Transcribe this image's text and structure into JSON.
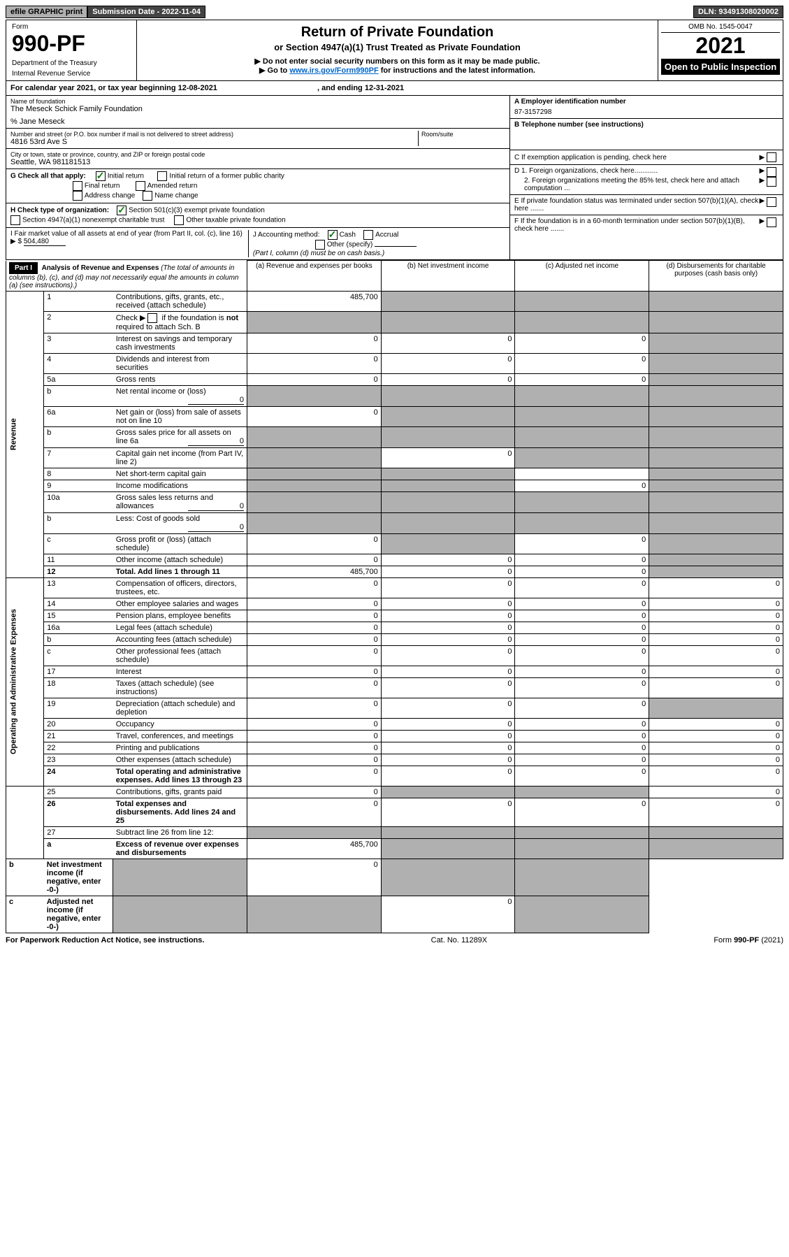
{
  "topbar": {
    "efile": "efile GRAPHIC print",
    "submission": "Submission Date - 2022-11-04",
    "dln": "DLN: 93491308020002"
  },
  "header": {
    "form_label": "Form",
    "form_number": "990-PF",
    "dept1": "Department of the Treasury",
    "dept2": "Internal Revenue Service",
    "title1": "Return of Private Foundation",
    "title2": "or Section 4947(a)(1) Trust Treated as Private Foundation",
    "sub1": "▶ Do not enter social security numbers on this form as it may be made public.",
    "sub2_pre": "▶ Go to ",
    "sub2_link": "www.irs.gov/Form990PF",
    "sub2_post": " for instructions and the latest information.",
    "omb": "OMB No. 1545-0047",
    "year": "2021",
    "open": "Open to Public Inspection"
  },
  "cal_year": {
    "text_pre": "For calendar year 2021, or tax year beginning ",
    "begin": "12-08-2021",
    "text_mid": " , and ending ",
    "end": "12-31-2021"
  },
  "info": {
    "name_label": "Name of foundation",
    "name": "The Meseck Schick Family Foundation",
    "care_of": "% Jane Meseck",
    "street_label": "Number and street (or P.O. box number if mail is not delivered to street address)",
    "street": "4816 53rd Ave S",
    "room_label": "Room/suite",
    "city_label": "City or town, state or province, country, and ZIP or foreign postal code",
    "city": "Seattle, WA  981181513",
    "ein_label": "A Employer identification number",
    "ein": "87-3157298",
    "phone_label": "B Telephone number (see instructions)",
    "c_label": "C If exemption application is pending, check here",
    "d1_label": "D 1. Foreign organizations, check here............",
    "d2_label": "2. Foreign organizations meeting the 85% test, check here and attach computation ...",
    "e_label": "E  If private foundation status was terminated under section 507(b)(1)(A), check here .......",
    "f_label": "F  If the foundation is in a 60-month termination under section 507(b)(1)(B), check here .......",
    "g_label": "G Check all that apply:",
    "g_initial": "Initial return",
    "g_initial_former": "Initial return of a former public charity",
    "g_final": "Final return",
    "g_amended": "Amended return",
    "g_address": "Address change",
    "g_name": "Name change",
    "h_label": "H Check type of organization:",
    "h_501c3": "Section 501(c)(3) exempt private foundation",
    "h_4947": "Section 4947(a)(1) nonexempt charitable trust",
    "h_other": "Other taxable private foundation",
    "i_label": "I Fair market value of all assets at end of year (from Part II, col. (c), line 16) ▶ $",
    "i_value": "504,480",
    "j_label": "J Accounting method:",
    "j_cash": "Cash",
    "j_accrual": "Accrual",
    "j_other": "Other (specify)",
    "j_note": "(Part I, column (d) must be on cash basis.)"
  },
  "part1": {
    "label": "Part I",
    "title": "Analysis of Revenue and Expenses",
    "note": " (The total of amounts in columns (b), (c), and (d) may not necessarily equal the amounts in column (a) (see instructions).)",
    "col_a": "(a)   Revenue and expenses per books",
    "col_b": "(b)   Net investment income",
    "col_c": "(c)   Adjusted net income",
    "col_d": "(d)   Disbursements for charitable purposes (cash basis only)"
  },
  "section_labels": {
    "revenue": "Revenue",
    "expenses": "Operating and Administrative Expenses"
  },
  "rows": [
    {
      "n": "1",
      "d": "Contributions, gifts, grants, etc., received (attach schedule)",
      "a": "485,700",
      "b": "",
      "c": "",
      "dd": "",
      "ga": false,
      "gb": true,
      "gc": true,
      "gd": true
    },
    {
      "n": "2",
      "d": "Check ▶ ☐ if the foundation is not required to attach Sch. B",
      "a": "",
      "b": "",
      "c": "",
      "dd": "",
      "ga": true,
      "gb": true,
      "gc": true,
      "gd": true,
      "html": true
    },
    {
      "n": "3",
      "d": "Interest on savings and temporary cash investments",
      "a": "0",
      "b": "0",
      "c": "0",
      "dd": "",
      "ga": false,
      "gb": false,
      "gc": false,
      "gd": true
    },
    {
      "n": "4",
      "d": "Dividends and interest from securities",
      "a": "0",
      "b": "0",
      "c": "0",
      "dd": "",
      "ga": false,
      "gb": false,
      "gc": false,
      "gd": true
    },
    {
      "n": "5a",
      "d": "Gross rents",
      "a": "0",
      "b": "0",
      "c": "0",
      "dd": "",
      "ga": false,
      "gb": false,
      "gc": false,
      "gd": true
    },
    {
      "n": "b",
      "d": "Net rental income or (loss)",
      "a": "",
      "b": "",
      "c": "",
      "dd": "",
      "inline": "0",
      "ga": true,
      "gb": true,
      "gc": true,
      "gd": true
    },
    {
      "n": "6a",
      "d": "Net gain or (loss) from sale of assets not on line 10",
      "a": "0",
      "b": "",
      "c": "",
      "dd": "",
      "ga": false,
      "gb": true,
      "gc": true,
      "gd": true
    },
    {
      "n": "b",
      "d": "Gross sales price for all assets on line 6a",
      "a": "",
      "b": "",
      "c": "",
      "dd": "",
      "inline": "0",
      "ga": true,
      "gb": true,
      "gc": true,
      "gd": true
    },
    {
      "n": "7",
      "d": "Capital gain net income (from Part IV, line 2)",
      "a": "",
      "b": "0",
      "c": "",
      "dd": "",
      "ga": true,
      "gb": false,
      "gc": true,
      "gd": true
    },
    {
      "n": "8",
      "d": "Net short-term capital gain",
      "a": "",
      "b": "",
      "c": "",
      "dd": "",
      "ga": true,
      "gb": true,
      "gc": false,
      "gd": true
    },
    {
      "n": "9",
      "d": "Income modifications",
      "a": "",
      "b": "",
      "c": "0",
      "dd": "",
      "ga": true,
      "gb": true,
      "gc": false,
      "gd": true
    },
    {
      "n": "10a",
      "d": "Gross sales less returns and allowances",
      "a": "",
      "b": "",
      "c": "",
      "dd": "",
      "inline": "0",
      "ga": true,
      "gb": true,
      "gc": true,
      "gd": true
    },
    {
      "n": "b",
      "d": "Less: Cost of goods sold",
      "a": "",
      "b": "",
      "c": "",
      "dd": "",
      "inline": "0",
      "ga": true,
      "gb": true,
      "gc": true,
      "gd": true
    },
    {
      "n": "c",
      "d": "Gross profit or (loss) (attach schedule)",
      "a": "0",
      "b": "",
      "c": "0",
      "dd": "",
      "ga": false,
      "gb": true,
      "gc": false,
      "gd": true
    },
    {
      "n": "11",
      "d": "Other income (attach schedule)",
      "a": "0",
      "b": "0",
      "c": "0",
      "dd": "",
      "ga": false,
      "gb": false,
      "gc": false,
      "gd": true
    },
    {
      "n": "12",
      "d": "Total. Add lines 1 through 11",
      "a": "485,700",
      "b": "0",
      "c": "0",
      "dd": "",
      "ga": false,
      "gb": false,
      "gc": false,
      "gd": true,
      "bold": true
    },
    {
      "n": "13",
      "d": "Compensation of officers, directors, trustees, etc.",
      "a": "0",
      "b": "0",
      "c": "0",
      "dd": "0"
    },
    {
      "n": "14",
      "d": "Other employee salaries and wages",
      "a": "0",
      "b": "0",
      "c": "0",
      "dd": "0"
    },
    {
      "n": "15",
      "d": "Pension plans, employee benefits",
      "a": "0",
      "b": "0",
      "c": "0",
      "dd": "0"
    },
    {
      "n": "16a",
      "d": "Legal fees (attach schedule)",
      "a": "0",
      "b": "0",
      "c": "0",
      "dd": "0"
    },
    {
      "n": "b",
      "d": "Accounting fees (attach schedule)",
      "a": "0",
      "b": "0",
      "c": "0",
      "dd": "0"
    },
    {
      "n": "c",
      "d": "Other professional fees (attach schedule)",
      "a": "0",
      "b": "0",
      "c": "0",
      "dd": "0"
    },
    {
      "n": "17",
      "d": "Interest",
      "a": "0",
      "b": "0",
      "c": "0",
      "dd": "0"
    },
    {
      "n": "18",
      "d": "Taxes (attach schedule) (see instructions)",
      "a": "0",
      "b": "0",
      "c": "0",
      "dd": "0"
    },
    {
      "n": "19",
      "d": "Depreciation (attach schedule) and depletion",
      "a": "0",
      "b": "0",
      "c": "0",
      "dd": "",
      "gd": true
    },
    {
      "n": "20",
      "d": "Occupancy",
      "a": "0",
      "b": "0",
      "c": "0",
      "dd": "0"
    },
    {
      "n": "21",
      "d": "Travel, conferences, and meetings",
      "a": "0",
      "b": "0",
      "c": "0",
      "dd": "0"
    },
    {
      "n": "22",
      "d": "Printing and publications",
      "a": "0",
      "b": "0",
      "c": "0",
      "dd": "0"
    },
    {
      "n": "23",
      "d": "Other expenses (attach schedule)",
      "a": "0",
      "b": "0",
      "c": "0",
      "dd": "0"
    },
    {
      "n": "24",
      "d": "Total operating and administrative expenses. Add lines 13 through 23",
      "a": "0",
      "b": "0",
      "c": "0",
      "dd": "0",
      "bold": true
    },
    {
      "n": "25",
      "d": "Contributions, gifts, grants paid",
      "a": "0",
      "b": "",
      "c": "",
      "dd": "0",
      "gb": true,
      "gc": true
    },
    {
      "n": "26",
      "d": "Total expenses and disbursements. Add lines 24 and 25",
      "a": "0",
      "b": "0",
      "c": "0",
      "dd": "0",
      "bold": true
    },
    {
      "n": "27",
      "d": "Subtract line 26 from line 12:",
      "a": "",
      "b": "",
      "c": "",
      "dd": "",
      "ga": true,
      "gb": true,
      "gc": true,
      "gd": true
    },
    {
      "n": "a",
      "d": "Excess of revenue over expenses and disbursements",
      "a": "485,700",
      "b": "",
      "c": "",
      "dd": "",
      "bold": true,
      "gb": true,
      "gc": true,
      "gd": true
    },
    {
      "n": "b",
      "d": "Net investment income (if negative, enter -0-)",
      "a": "",
      "b": "0",
      "c": "",
      "dd": "",
      "bold": true,
      "ga": true,
      "gc": true,
      "gd": true
    },
    {
      "n": "c",
      "d": "Adjusted net income (if negative, enter -0-)",
      "a": "",
      "b": "",
      "c": "0",
      "dd": "",
      "bold": true,
      "ga": true,
      "gb": true,
      "gd": true
    }
  ],
  "footer": {
    "left": "For Paperwork Reduction Act Notice, see instructions.",
    "mid": "Cat. No. 11289X",
    "right": "Form 990-PF (2021)"
  }
}
